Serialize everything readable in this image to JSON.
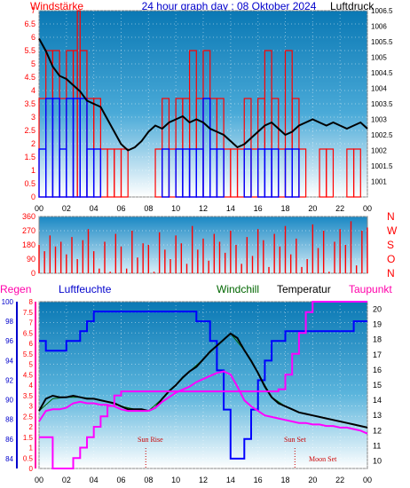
{
  "header": {
    "title": "24 hour graph day : 08 Oktober 2024",
    "left_label": "Windstärke",
    "right_label": "Luftdruck"
  },
  "legend": {
    "regen": "Regen",
    "luftfeuchte": "Luftfeuchte",
    "windchill": "Windchill",
    "temperatur": "Temperatur",
    "taupunkt": "Taupunkt"
  },
  "direction_labels": [
    "N",
    "W",
    "S",
    "O",
    "N"
  ],
  "events": {
    "sunrise": "Sun Rise",
    "sunset": "Sun Set",
    "moonset": "Moon Set"
  },
  "colors": {
    "wind_red": "#ff0000",
    "wind_blue": "#0000ff",
    "pressure": "#000000",
    "humidity": "#0000ff",
    "windchill": "#006600",
    "temperature": "#000000",
    "dewpoint": "#ff00ff",
    "rain": "#ff0000",
    "sky_top": "#0a78b4",
    "sky_bottom": "#ffffff"
  },
  "chart_data": [
    {
      "type": "bar",
      "x_ticks": [
        "00",
        "02",
        "04",
        "06",
        "08",
        "10",
        "12",
        "14",
        "16",
        "18",
        "20",
        "22",
        "00"
      ],
      "left_axis": {
        "unit": "Windstärke",
        "ticks": [
          "0",
          "0.5",
          "1",
          "1.5",
          "2",
          "2.5",
          "3",
          "3.5",
          "4",
          "4.5",
          "5",
          "5.5",
          "6",
          "6.5",
          "7"
        ],
        "ylim": [
          0,
          7
        ]
      },
      "right_axis": {
        "unit": "Luftdruck",
        "ticks": [
          "1001",
          "1001.5",
          "1002",
          "1002.5",
          "1003",
          "1003.5",
          "1004",
          "1004.5",
          "1005",
          "1005.5",
          "1006",
          "1006.5"
        ],
        "ylim": [
          1000.5,
          1006.5
        ]
      },
      "series": [
        {
          "name": "Wind gust",
          "x": [
            0,
            0.5,
            1,
            1.5,
            2,
            2.5,
            2.8,
            3,
            3.5,
            4,
            4.5,
            5,
            5.5,
            6,
            6.5,
            7,
            7.5,
            8,
            8.5,
            9,
            9.5,
            10,
            10.5,
            11,
            11.5,
            12,
            12.5,
            13,
            13.5,
            14,
            14.5,
            15,
            15.5,
            16,
            16.5,
            17,
            17.5,
            18,
            18.5,
            19,
            19.5,
            20,
            20.5,
            21,
            21.5,
            22,
            22.5,
            23,
            23.5,
            24
          ],
          "values": [
            3.7,
            5.5,
            5.5,
            3.7,
            5.5,
            5.5,
            7,
            5.5,
            3.7,
            3.7,
            1.8,
            1.8,
            1.8,
            1.8,
            0,
            0,
            0,
            0,
            1.8,
            3.7,
            1.8,
            3.7,
            3.7,
            5.5,
            3.7,
            5.5,
            3.7,
            3.7,
            1.8,
            1.8,
            1.8,
            3.7,
            1.8,
            3.7,
            5.5,
            3.7,
            1.8,
            5.5,
            3.7,
            1.8,
            0,
            0,
            1.8,
            1.8,
            0,
            0,
            1.8,
            1.8,
            0,
            1.8
          ]
        },
        {
          "name": "Wind speed",
          "x": [
            0,
            0.5,
            1,
            1.5,
            2,
            2.5,
            3,
            3.5,
            4,
            4.5,
            5,
            5.5,
            6,
            6.5,
            7,
            7.5,
            8,
            8.5,
            9,
            9.5,
            10,
            10.5,
            11,
            11.5,
            12,
            12.5,
            13,
            13.5,
            14,
            14.5,
            15,
            15.5,
            16,
            16.5,
            17,
            17.5,
            18,
            18.5,
            19,
            19.5,
            20,
            20.5,
            21,
            21.5,
            22,
            22.5,
            23,
            23.5,
            24
          ],
          "values": [
            1.8,
            3.7,
            3.7,
            1.8,
            3.7,
            3.7,
            3.7,
            1.8,
            1.8,
            0,
            0,
            0,
            0,
            0,
            0,
            0,
            0,
            0,
            1.8,
            0,
            1.8,
            1.8,
            1.8,
            1.8,
            3.7,
            1.8,
            1.8,
            0,
            0,
            0,
            1.8,
            0,
            1.8,
            1.8,
            1.8,
            0,
            1.8,
            1.8,
            0,
            0,
            0,
            0,
            0,
            0,
            0,
            0,
            0,
            0,
            0
          ]
        },
        {
          "name": "Luftdruck",
          "x": [
            0,
            0.5,
            1,
            1.5,
            2,
            2.5,
            3,
            3.5,
            4,
            4.5,
            5,
            5.5,
            6,
            6.5,
            7,
            7.5,
            8,
            8.5,
            9,
            9.5,
            10,
            10.5,
            11,
            11.5,
            12,
            12.5,
            13,
            13.5,
            14,
            14.5,
            15,
            15.5,
            16,
            16.5,
            17,
            17.5,
            18,
            18.5,
            19,
            19.5,
            20,
            20.5,
            21,
            21.5,
            22,
            22.5,
            23,
            23.5,
            24
          ],
          "values": [
            1005.6,
            1005.2,
            1004.7,
            1004.4,
            1004.3,
            1004.1,
            1003.9,
            1003.6,
            1003.5,
            1003.4,
            1003.0,
            1002.6,
            1002.2,
            1002.0,
            1002.1,
            1002.3,
            1002.6,
            1002.8,
            1002.7,
            1002.9,
            1003.0,
            1003.1,
            1002.9,
            1003.0,
            1002.9,
            1002.7,
            1002.6,
            1002.5,
            1002.3,
            1002.1,
            1002.2,
            1002.4,
            1002.6,
            1002.8,
            1002.9,
            1002.7,
            1002.5,
            1002.6,
            1002.8,
            1002.9,
            1003.0,
            1002.9,
            1002.8,
            1002.9,
            1002.8,
            1002.7,
            1002.8,
            1002.9,
            1002.7
          ]
        }
      ]
    },
    {
      "type": "scatter",
      "name": "Windrichtung",
      "left_axis": {
        "ticks": [
          "0",
          "90",
          "180",
          "270",
          "360"
        ],
        "ylim": [
          0,
          360
        ]
      },
      "x": [
        0,
        0.4,
        0.8,
        1.2,
        1.6,
        2,
        2.4,
        2.8,
        3.2,
        3.6,
        4,
        4.4,
        4.8,
        5.2,
        5.6,
        6,
        6.4,
        6.8,
        7.2,
        7.6,
        8,
        8.4,
        8.8,
        9.2,
        9.6,
        10,
        10.4,
        10.8,
        11.2,
        11.6,
        12,
        12.4,
        12.8,
        13.2,
        13.6,
        14,
        14.4,
        14.8,
        15.2,
        15.6,
        16,
        16.4,
        16.8,
        17.2,
        17.6,
        18,
        18.4,
        18.8,
        19.2,
        19.6,
        20,
        20.4,
        20.8,
        21.2,
        21.6,
        22,
        22.4,
        22.8,
        23.2,
        23.6,
        24
      ],
      "values": [
        180,
        140,
        240,
        170,
        200,
        120,
        230,
        90,
        210,
        280,
        140,
        30,
        200,
        10,
        250,
        170,
        30,
        270,
        100,
        190,
        180,
        10,
        260,
        150,
        90,
        240,
        190,
        60,
        300,
        150,
        220,
        80,
        250,
        200,
        130,
        270,
        180,
        60,
        230,
        110,
        280,
        210,
        40,
        250,
        170,
        300,
        120,
        220,
        40,
        90,
        310,
        160,
        270,
        10,
        200,
        280,
        180,
        330,
        50,
        270,
        290
      ]
    },
    {
      "type": "line",
      "x_ticks": [
        "00",
        "02",
        "04",
        "06",
        "08",
        "10",
        "12",
        "14",
        "16",
        "18",
        "20",
        "22",
        "00"
      ],
      "humidity_axis": {
        "ticks": [
          "84",
          "86",
          "88",
          "90",
          "92",
          "94",
          "96",
          "98",
          "100"
        ],
        "ylim": [
          83,
          100
        ]
      },
      "rain_axis": {
        "ticks": [
          "0",
          "0.5",
          "1",
          "1.5",
          "2",
          "2.5",
          "3",
          "3.5",
          "4",
          "4.5",
          "5",
          "5.5",
          "6",
          "6.5",
          "7",
          "7.5",
          "8"
        ],
        "ylim": [
          0,
          8
        ]
      },
      "temp_axis": {
        "ticks": [
          "10",
          "11",
          "12",
          "13",
          "14",
          "15",
          "16",
          "17",
          "18",
          "19",
          "20"
        ],
        "ylim": [
          9.5,
          20.5
        ]
      },
      "series": [
        {
          "name": "Luftfeuchte",
          "x": [
            0,
            0.5,
            1,
            1.5,
            2,
            2.5,
            3,
            3.5,
            4,
            4.5,
            5,
            5.5,
            6,
            6.5,
            7,
            7.5,
            8,
            8.5,
            9,
            9.5,
            10,
            10.5,
            11,
            11.5,
            12,
            12.5,
            13,
            13.5,
            14,
            14.5,
            15,
            15.5,
            16,
            16.5,
            17,
            17.5,
            18,
            18.5,
            19,
            19.5,
            20,
            20.5,
            21,
            21.5,
            22,
            22.5,
            23,
            23.5,
            24
          ],
          "values": [
            96,
            95,
            95,
            95,
            96,
            96,
            97,
            98,
            99,
            99,
            99,
            99,
            99,
            99,
            99,
            99,
            99,
            99,
            99,
            99,
            99,
            99,
            99,
            98,
            98,
            96,
            93,
            89,
            84,
            84,
            86,
            89,
            92,
            94,
            96,
            96,
            97,
            97,
            97,
            97,
            97,
            97,
            97,
            97,
            97,
            97,
            98,
            98,
            98
          ]
        },
        {
          "name": "Temperatur",
          "x": [
            0,
            0.5,
            1,
            1.5,
            2,
            2.5,
            3,
            3.5,
            4,
            4.5,
            5,
            5.5,
            6,
            6.5,
            7,
            7.5,
            8,
            8.5,
            9,
            9.5,
            10,
            10.5,
            11,
            11.5,
            12,
            12.5,
            13,
            13.5,
            14,
            14.5,
            15,
            15.5,
            16,
            16.5,
            17,
            17.5,
            18,
            18.5,
            19,
            19.5,
            20,
            20.5,
            21,
            21.5,
            22,
            22.5,
            23,
            23.5,
            24
          ],
          "values": [
            13.3,
            14.1,
            14.3,
            14.2,
            14.2,
            14.3,
            14.2,
            14.1,
            14.1,
            14.0,
            13.9,
            13.8,
            13.6,
            13.4,
            13.4,
            13.4,
            13.3,
            13.5,
            14.1,
            14.6,
            15.0,
            15.5,
            15.9,
            16.2,
            16.7,
            17.2,
            17.6,
            18.0,
            18.4,
            18.1,
            17.3,
            16.6,
            15.8,
            14.9,
            14.2,
            13.8,
            13.6,
            13.4,
            13.2,
            13.1,
            13.0,
            12.9,
            12.8,
            12.7,
            12.6,
            12.5,
            12.4,
            12.3,
            12.2
          ]
        },
        {
          "name": "Windchill",
          "x": [
            0,
            1,
            2,
            3,
            4,
            5,
            6,
            7,
            8,
            9,
            10,
            11,
            12,
            13,
            14,
            15,
            16,
            17,
            18,
            19,
            20,
            21,
            22,
            23,
            24
          ],
          "values": [
            13.3,
            14.1,
            14.2,
            14.2,
            14.1,
            13.9,
            13.6,
            13.4,
            13.3,
            14.1,
            15.0,
            15.9,
            16.7,
            17.6,
            18.4,
            17.3,
            15.8,
            14.2,
            13.6,
            13.2,
            13.0,
            12.8,
            12.6,
            12.4,
            12.2
          ]
        },
        {
          "name": "Taupunkt",
          "x": [
            0,
            0.5,
            1,
            1.5,
            2,
            2.5,
            3,
            3.5,
            4,
            4.5,
            5,
            5.5,
            6,
            6.5,
            7,
            7.5,
            8,
            8.5,
            9,
            9.5,
            10,
            10.5,
            11,
            11.5,
            12,
            12.5,
            13,
            13.5,
            14,
            14.5,
            15,
            15.5,
            16,
            16.5,
            17,
            17.5,
            18,
            18.5,
            19,
            19.5,
            20,
            20.5,
            21,
            21.5,
            22,
            22.5,
            23,
            23.5,
            24
          ],
          "values": [
            12.6,
            13.3,
            13.4,
            13.4,
            13.5,
            13.8,
            13.9,
            13.8,
            13.8,
            13.7,
            13.7,
            13.6,
            13.4,
            13.3,
            13.3,
            13.3,
            13.3,
            13.5,
            13.9,
            14.2,
            14.5,
            14.7,
            14.9,
            15.2,
            15.4,
            15.6,
            15.8,
            15.9,
            15.7,
            14.9,
            14.0,
            13.6,
            13.3,
            13.0,
            12.9,
            12.8,
            12.7,
            12.6,
            12.5,
            12.5,
            12.4,
            12.4,
            12.3,
            12.3,
            12.2,
            12.2,
            12.1,
            12.0,
            11.8
          ]
        },
        {
          "name": "Regen",
          "x": [
            0,
            0.5,
            1,
            1.5,
            2,
            2.5,
            3,
            3.5,
            4,
            4.5,
            5,
            5.5,
            6,
            6.5,
            7,
            7.5,
            8,
            8.5,
            9,
            9.5,
            10,
            10.5,
            11,
            11.5,
            12,
            12.5,
            13,
            13.5,
            14,
            14.5,
            15,
            15.5,
            16,
            16.5,
            17,
            17.5,
            18,
            18.5,
            19,
            19.5,
            20,
            20.5,
            21,
            21.5,
            22,
            22.5,
            23,
            23.5,
            24
          ],
          "values": [
            1.5,
            1.5,
            0,
            0,
            0,
            0.5,
            1.0,
            1.5,
            2.0,
            2.5,
            3.0,
            3.5,
            3.7,
            3.7,
            3.7,
            3.7,
            3.7,
            3.7,
            3.7,
            3.7,
            3.7,
            3.7,
            3.7,
            3.7,
            3.7,
            3.7,
            3.7,
            3.7,
            3.7,
            3.7,
            3.7,
            3.7,
            3.7,
            3.7,
            3.7,
            3.8,
            4.5,
            5.5,
            6.5,
            7.5,
            8.0,
            8.0,
            8.0,
            8.0,
            8.0,
            8.0,
            8.0,
            8.0,
            8.0
          ]
        }
      ]
    }
  ]
}
